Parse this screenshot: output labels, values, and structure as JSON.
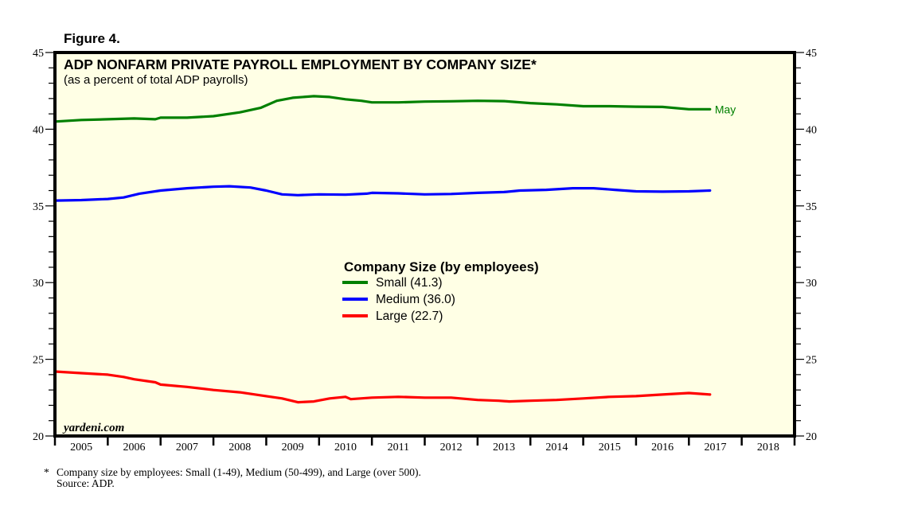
{
  "figure_label": "Figure 4.",
  "footnote": {
    "marker": "*",
    "text": "Company size by employees: Small (1-49), Medium (50-499), and Large (over 500).",
    "source": "Source: ADP."
  },
  "chart_data": {
    "type": "line",
    "title": "ADP NONFARM PRIVATE PAYROLL EMPLOYMENT BY COMPANY SIZE*",
    "subtitle": "(as a percent of total ADP payrolls)",
    "xlabel": "",
    "ylabel": "",
    "xlim": [
      2005,
      2019
    ],
    "ylim": [
      20,
      45
    ],
    "y_ticks": [
      20,
      25,
      30,
      35,
      40,
      45
    ],
    "y_minor_step": 1,
    "x_tick_labels": [
      "2005",
      "2006",
      "2007",
      "2008",
      "2009",
      "2010",
      "2011",
      "2012",
      "2013",
      "2014",
      "2015",
      "2016",
      "2017",
      "2018"
    ],
    "background_color": "#ffffe5",
    "grid": false,
    "legend": {
      "title": "Company Size (by employees)",
      "placement": "center",
      "entries": [
        "Small (41.3)",
        "Medium (36.0)",
        "Large (22.7)"
      ]
    },
    "end_label": {
      "series": "Small",
      "text": "May"
    },
    "watermark": "yardeni.com",
    "series": [
      {
        "name": "Small",
        "color": "#008000",
        "x": [
          2005.0,
          2005.5,
          2006.0,
          2006.5,
          2006.9,
          2007.0,
          2007.5,
          2008.0,
          2008.5,
          2008.9,
          2009.2,
          2009.5,
          2009.9,
          2010.2,
          2010.5,
          2010.8,
          2011.0,
          2011.5,
          2012.0,
          2012.5,
          2013.0,
          2013.5,
          2014.0,
          2014.5,
          2015.0,
          2015.5,
          2016.0,
          2016.5,
          2017.0,
          2017.4
        ],
        "y": [
          40.5,
          40.6,
          40.65,
          40.7,
          40.65,
          40.75,
          40.75,
          40.85,
          41.1,
          41.4,
          41.85,
          42.05,
          42.15,
          42.1,
          41.95,
          41.85,
          41.75,
          41.75,
          41.8,
          41.82,
          41.85,
          41.83,
          41.7,
          41.62,
          41.5,
          41.5,
          41.47,
          41.45,
          41.3,
          41.3
        ]
      },
      {
        "name": "Medium",
        "color": "#0000ff",
        "x": [
          2005.0,
          2005.5,
          2006.0,
          2006.3,
          2006.6,
          2007.0,
          2007.5,
          2008.0,
          2008.3,
          2008.7,
          2009.0,
          2009.3,
          2009.6,
          2010.0,
          2010.5,
          2010.9,
          2011.0,
          2011.5,
          2012.0,
          2012.5,
          2013.0,
          2013.5,
          2013.8,
          2014.3,
          2014.8,
          2015.2,
          2015.6,
          2016.0,
          2016.5,
          2017.0,
          2017.4
        ],
        "y": [
          35.35,
          35.38,
          35.45,
          35.55,
          35.8,
          36.0,
          36.15,
          36.25,
          36.28,
          36.2,
          36.0,
          35.75,
          35.7,
          35.75,
          35.73,
          35.8,
          35.85,
          35.82,
          35.75,
          35.78,
          35.85,
          35.9,
          36.0,
          36.05,
          36.15,
          36.15,
          36.05,
          35.95,
          35.93,
          35.95,
          36.0
        ]
      },
      {
        "name": "Large",
        "color": "#ff0000",
        "x": [
          2005.0,
          2005.5,
          2006.0,
          2006.3,
          2006.5,
          2006.9,
          2007.0,
          2007.5,
          2008.0,
          2008.5,
          2009.0,
          2009.3,
          2009.6,
          2009.9,
          2010.2,
          2010.5,
          2010.6,
          2011.0,
          2011.5,
          2012.0,
          2012.5,
          2013.0,
          2013.4,
          2013.6,
          2014.0,
          2014.5,
          2015.0,
          2015.5,
          2016.0,
          2016.5,
          2017.0,
          2017.4
        ],
        "y": [
          24.2,
          24.1,
          24.0,
          23.85,
          23.7,
          23.5,
          23.35,
          23.2,
          23.0,
          22.85,
          22.6,
          22.45,
          22.2,
          22.25,
          22.45,
          22.55,
          22.4,
          22.5,
          22.55,
          22.5,
          22.5,
          22.35,
          22.3,
          22.25,
          22.3,
          22.35,
          22.45,
          22.55,
          22.6,
          22.7,
          22.8,
          22.7
        ]
      }
    ]
  }
}
